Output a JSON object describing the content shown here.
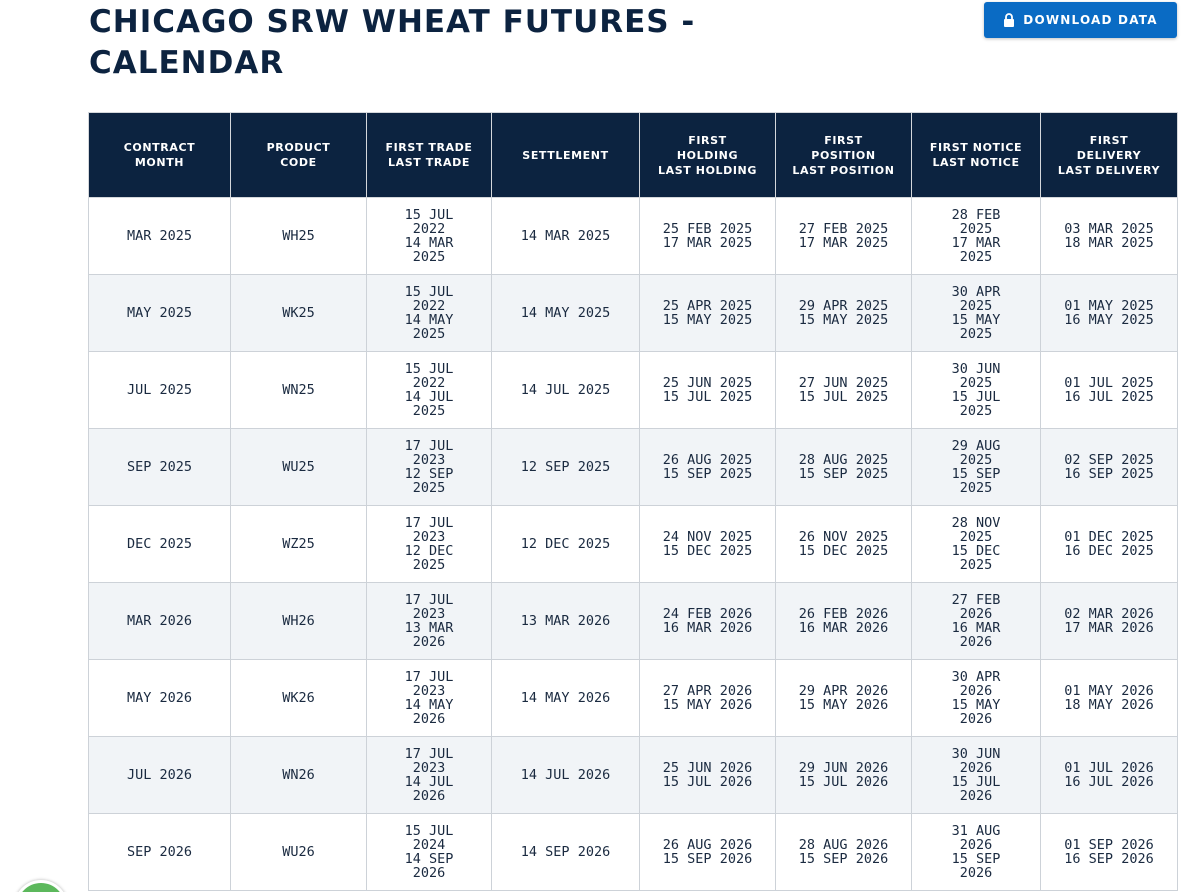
{
  "page": {
    "title": "CHICAGO SRW WHEAT FUTURES - CALENDAR",
    "download_label": "DOWNLOAD DATA"
  },
  "table": {
    "headers": [
      [
        "CONTRACT",
        "MONTH"
      ],
      [
        "PRODUCT",
        "CODE"
      ],
      [
        "FIRST TRADE",
        "LAST TRADE"
      ],
      [
        "SETTLEMENT"
      ],
      [
        "FIRST",
        "HOLDING",
        "LAST HOLDING"
      ],
      [
        "FIRST",
        "POSITION",
        "LAST POSITION"
      ],
      [
        "FIRST NOTICE",
        "LAST NOTICE"
      ],
      [
        "FIRST",
        "DELIVERY",
        "LAST DELIVERY"
      ]
    ],
    "rows": [
      {
        "month": "MAR 2025",
        "code": "WH25",
        "first_trade": "15 JUL 2022",
        "last_trade": "14 MAR 2025",
        "settlement": "14 MAR 2025",
        "first_holding": "25 FEB 2025",
        "last_holding": "17 MAR 2025",
        "first_position": "27 FEB 2025",
        "last_position": "17 MAR 2025",
        "first_notice": "28 FEB 2025",
        "last_notice": "17 MAR 2025",
        "first_delivery": "03 MAR 2025",
        "last_delivery": "18 MAR 2025"
      },
      {
        "month": "MAY 2025",
        "code": "WK25",
        "first_trade": "15 JUL 2022",
        "last_trade": "14 MAY 2025",
        "settlement": "14 MAY 2025",
        "first_holding": "25 APR 2025",
        "last_holding": "15 MAY 2025",
        "first_position": "29 APR 2025",
        "last_position": "15 MAY 2025",
        "first_notice": "30 APR 2025",
        "last_notice": "15 MAY 2025",
        "first_delivery": "01 MAY 2025",
        "last_delivery": "16 MAY 2025"
      },
      {
        "month": "JUL 2025",
        "code": "WN25",
        "first_trade": "15 JUL 2022",
        "last_trade": "14 JUL 2025",
        "settlement": "14 JUL 2025",
        "first_holding": "25 JUN 2025",
        "last_holding": "15 JUL 2025",
        "first_position": "27 JUN 2025",
        "last_position": "15 JUL 2025",
        "first_notice": "30 JUN 2025",
        "last_notice": "15 JUL 2025",
        "first_delivery": "01 JUL 2025",
        "last_delivery": "16 JUL 2025"
      },
      {
        "month": "SEP 2025",
        "code": "WU25",
        "first_trade": "17 JUL 2023",
        "last_trade": "12 SEP 2025",
        "settlement": "12 SEP 2025",
        "first_holding": "26 AUG 2025",
        "last_holding": "15 SEP 2025",
        "first_position": "28 AUG 2025",
        "last_position": "15 SEP 2025",
        "first_notice": "29 AUG 2025",
        "last_notice": "15 SEP 2025",
        "first_delivery": "02 SEP 2025",
        "last_delivery": "16 SEP 2025"
      },
      {
        "month": "DEC 2025",
        "code": "WZ25",
        "first_trade": "17 JUL 2023",
        "last_trade": "12 DEC 2025",
        "settlement": "12 DEC 2025",
        "first_holding": "24 NOV 2025",
        "last_holding": "15 DEC 2025",
        "first_position": "26 NOV 2025",
        "last_position": "15 DEC 2025",
        "first_notice": "28 NOV 2025",
        "last_notice": "15 DEC 2025",
        "first_delivery": "01 DEC 2025",
        "last_delivery": "16 DEC 2025"
      },
      {
        "month": "MAR 2026",
        "code": "WH26",
        "first_trade": "17 JUL 2023",
        "last_trade": "13 MAR 2026",
        "settlement": "13 MAR 2026",
        "first_holding": "24 FEB 2026",
        "last_holding": "16 MAR 2026",
        "first_position": "26 FEB 2026",
        "last_position": "16 MAR 2026",
        "first_notice": "27 FEB 2026",
        "last_notice": "16 MAR 2026",
        "first_delivery": "02 MAR 2026",
        "last_delivery": "17 MAR 2026"
      },
      {
        "month": "MAY 2026",
        "code": "WK26",
        "first_trade": "17 JUL 2023",
        "last_trade": "14 MAY 2026",
        "settlement": "14 MAY 2026",
        "first_holding": "27 APR 2026",
        "last_holding": "15 MAY 2026",
        "first_position": "29 APR 2026",
        "last_position": "15 MAY 2026",
        "first_notice": "30 APR 2026",
        "last_notice": "15 MAY 2026",
        "first_delivery": "01 MAY 2026",
        "last_delivery": "18 MAY 2026"
      },
      {
        "month": "JUL 2026",
        "code": "WN26",
        "first_trade": "17 JUL 2023",
        "last_trade": "14 JUL 2026",
        "settlement": "14 JUL 2026",
        "first_holding": "25 JUN 2026",
        "last_holding": "15 JUL 2026",
        "first_position": "29 JUN 2026",
        "last_position": "15 JUL 2026",
        "first_notice": "30 JUN 2026",
        "last_notice": "15 JUL 2026",
        "first_delivery": "01 JUL 2026",
        "last_delivery": "16 JUL 2026"
      },
      {
        "month": "SEP 2026",
        "code": "WU26",
        "first_trade": "15 JUL 2024",
        "last_trade": "14 SEP 2026",
        "settlement": "14 SEP 2026",
        "first_holding": "26 AUG 2026",
        "last_holding": "15 SEP 2026",
        "first_position": "28 AUG 2026",
        "last_position": "15 SEP 2026",
        "first_notice": "31 AUG 2026",
        "last_notice": "15 SEP 2026",
        "first_delivery": "01 SEP 2026",
        "last_delivery": "16 SEP 2026"
      }
    ]
  },
  "colors": {
    "header_bg": "#0c2340",
    "button_bg": "#0a6bc4",
    "stripe_bg": "#f1f4f7"
  },
  "icons": {
    "button_icon": "lock-icon",
    "chat_widget": "chat-icon"
  }
}
